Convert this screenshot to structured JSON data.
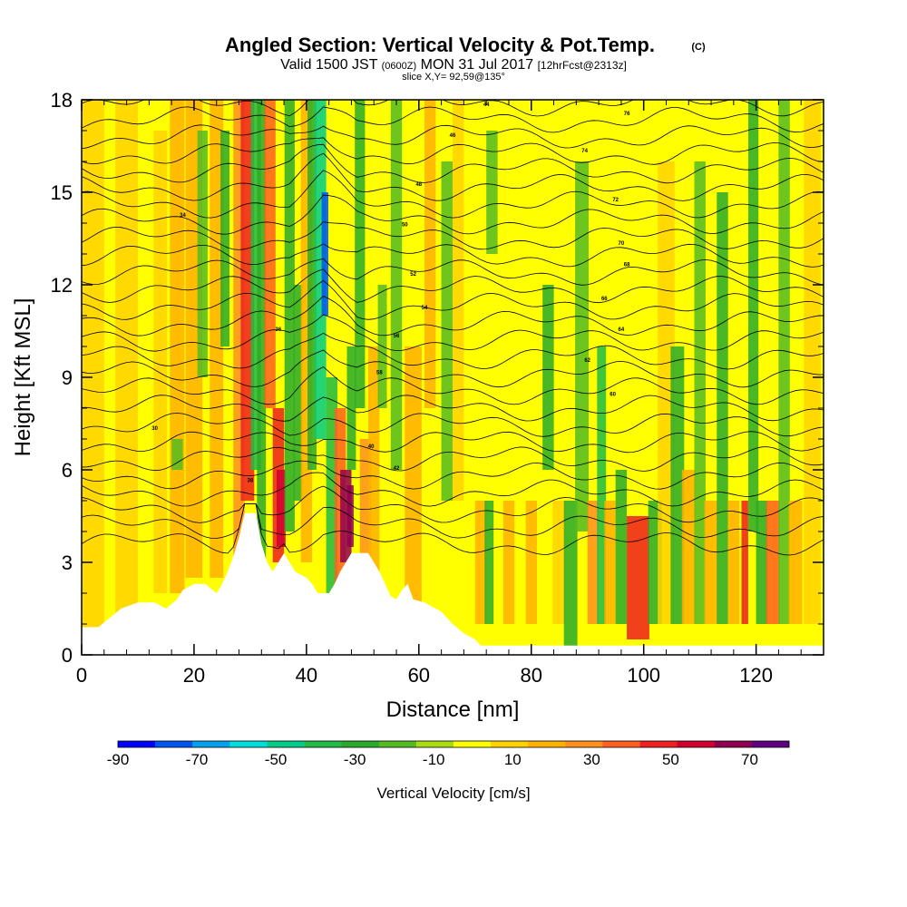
{
  "header": {
    "title": "Angled Section: Vertical Velocity & Pot.Temp.",
    "title_mark": "(C)",
    "valid_prefix": "Valid 1500 JST",
    "valid_utc": "(0600Z)",
    "valid_date": "MON 31 Jul 2017",
    "valid_fcst": "[12hrFcst@2313z]",
    "slice": "slice X,Y= 92,59@135°"
  },
  "chart_data": {
    "type": "heatmap",
    "xlabel": "Distance [nm]",
    "ylabel": "Height [Kft MSL]",
    "xlim": [
      0,
      132
    ],
    "ylim": [
      0,
      18
    ],
    "xticks": [
      "0",
      "20",
      "40",
      "60",
      "80",
      "100",
      "120"
    ],
    "yticks": [
      "0",
      "3",
      "6",
      "9",
      "12",
      "15",
      "18"
    ],
    "colorbar": {
      "label": "Vertical Velocity [cm/s]",
      "tick_labels": [
        "-90",
        "-70",
        "-50",
        "-30",
        "-10",
        "10",
        "30",
        "50",
        "70"
      ],
      "bounds": [
        -90,
        -80,
        -70,
        -60,
        -50,
        -40,
        -30,
        -20,
        -10,
        0,
        10,
        20,
        30,
        40,
        50,
        60,
        70,
        80
      ],
      "colors": [
        "#0000ff",
        "#0055ee",
        "#00a2ee",
        "#00dddd",
        "#00cc88",
        "#22bb44",
        "#2aaa2a",
        "#55bb22",
        "#aadd11",
        "#ffff00",
        "#ffd200",
        "#ffb000",
        "#ff9020",
        "#ff6020",
        "#ee2020",
        "#d00030",
        "#900050",
        "#600080"
      ]
    },
    "terrain_top_kft": [
      [
        0,
        0.9
      ],
      [
        3,
        0.9
      ],
      [
        5,
        1.2
      ],
      [
        7,
        1.5
      ],
      [
        10,
        1.7
      ],
      [
        13,
        1.7
      ],
      [
        15,
        1.5
      ],
      [
        17,
        1.8
      ],
      [
        18,
        2.1
      ],
      [
        20,
        2.3
      ],
      [
        22,
        2.3
      ],
      [
        24,
        2.0
      ],
      [
        25,
        2.3
      ],
      [
        26,
        2.7
      ],
      [
        27,
        3.2
      ],
      [
        28,
        3.8
      ],
      [
        29,
        4.6
      ],
      [
        31,
        4.6
      ],
      [
        32,
        3.6
      ],
      [
        33,
        3.0
      ],
      [
        34,
        2.7
      ],
      [
        35,
        3.0
      ],
      [
        36,
        3.3
      ],
      [
        37,
        3.0
      ],
      [
        38,
        2.7
      ],
      [
        39,
        2.6
      ],
      [
        40,
        2.5
      ],
      [
        41,
        2.3
      ],
      [
        42,
        2.0
      ],
      [
        44,
        2.0
      ],
      [
        45,
        2.3
      ],
      [
        46,
        2.7
      ],
      [
        47,
        3.0
      ],
      [
        48,
        3.3
      ],
      [
        51,
        3.3
      ],
      [
        52,
        3.0
      ],
      [
        53,
        2.7
      ],
      [
        54,
        2.3
      ],
      [
        55,
        1.9
      ],
      [
        56,
        1.8
      ],
      [
        57,
        2.1
      ],
      [
        58,
        2.3
      ],
      [
        59,
        1.8
      ],
      [
        61,
        1.7
      ],
      [
        64,
        1.4
      ],
      [
        66,
        1.0
      ],
      [
        68,
        0.7
      ],
      [
        70,
        0.5
      ],
      [
        71,
        0.3
      ],
      [
        132,
        0.3
      ]
    ],
    "contour_labels": [
      "30",
      "34",
      "36",
      "38",
      "40",
      "42",
      "44",
      "46",
      "48",
      "50",
      "52",
      "54",
      "56",
      "58",
      "60",
      "62",
      "64",
      "66",
      "68",
      "70",
      "72",
      "74",
      "76"
    ]
  }
}
